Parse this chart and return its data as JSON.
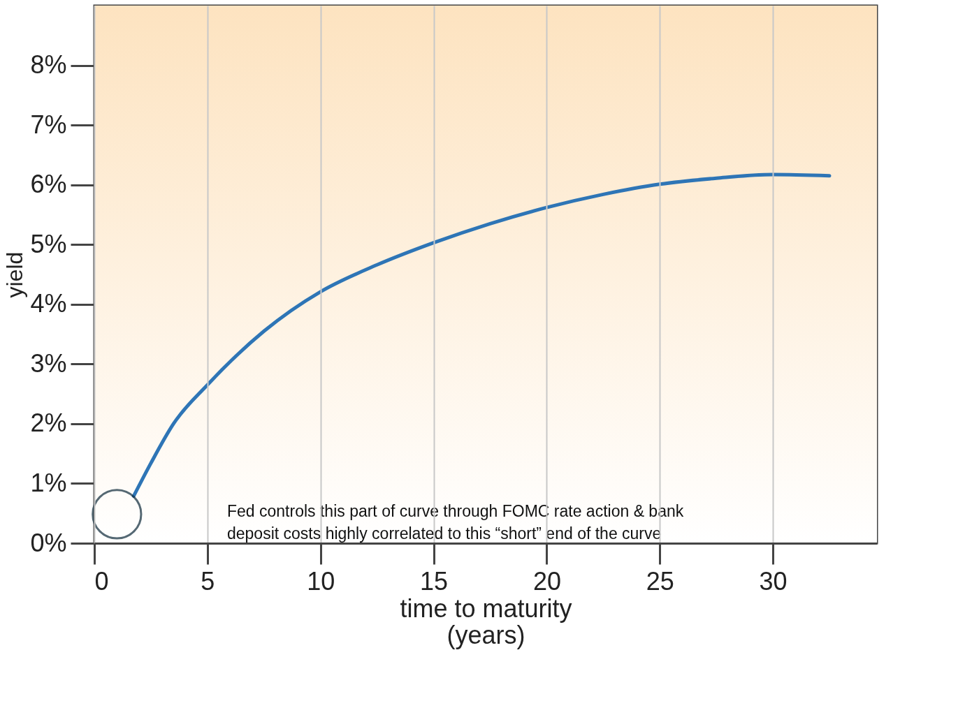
{
  "chart_data": {
    "type": "line",
    "xlabel": "time to maturity\n(years)",
    "ylabel": "yield",
    "x": [
      1.74,
      2.5,
      3.5,
      5,
      7.5,
      10,
      12.5,
      15,
      17.5,
      20,
      22.5,
      25,
      27.5,
      30,
      32.5
    ],
    "series": [
      {
        "color": "#2e75b6",
        "values": [
          0.79,
          1.34,
          2.0,
          2.65,
          3.55,
          4.21,
          4.66,
          5.03,
          5.35,
          5.62,
          5.84,
          6.01,
          6.11,
          6.17,
          6.15
        ]
      }
    ],
    "xlim": [
      0,
      34.6
    ],
    "ylim": [
      0,
      9
    ],
    "xticks": [
      0,
      5,
      10,
      15,
      20,
      25,
      30
    ],
    "yticks": [
      {
        "value": 0,
        "label": "0%"
      },
      {
        "value": 1,
        "label": "1%"
      },
      {
        "value": 2,
        "label": "2%"
      },
      {
        "value": 3,
        "label": "3%"
      },
      {
        "value": 4,
        "label": "4%"
      },
      {
        "value": 5,
        "label": "5%"
      },
      {
        "value": 6,
        "label": "6%"
      },
      {
        "value": 7,
        "label": "7%"
      },
      {
        "value": 8,
        "label": "8%"
      }
    ],
    "grid": "x",
    "marker": "none",
    "line_style": "solid",
    "annotations": [
      "Fed controls this part of curve through FOMC rate action & bank\ndeposit costs highly correlated to this “short” end of the curve"
    ]
  }
}
